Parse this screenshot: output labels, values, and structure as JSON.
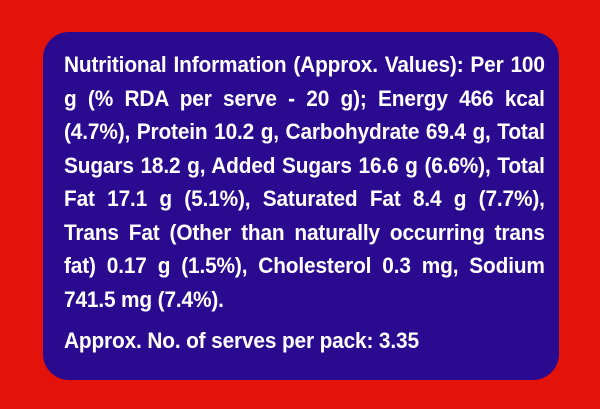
{
  "label": {
    "nutrition_text": "Nutritional Information (Approx. Values): Per 100 g (% RDA per serve - 20 g); Energy 466 kcal (4.7%), Protein 10.2 g, Carbohydrate 69.4 g, Total Sugars 18.2 g, Added Sugars 16.6 g (6.6%), Total Fat 17.1 g (5.1%), Saturated Fat 8.4 g (7.7%), Trans Fat (Other than naturally occurring trans fat) 0.17 g (1.5%), Cholesterol 0.3 mg, Sodium 741.5 mg (7.4%).",
    "serves_text": "Approx. No. of serves per pack: 3.35"
  },
  "colors": {
    "background": "#e3120b",
    "panel": "#2a0a8e",
    "text": "#ffffff"
  }
}
